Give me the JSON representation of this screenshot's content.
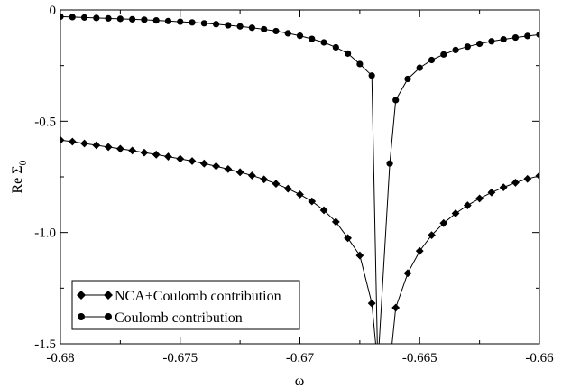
{
  "chart_data": {
    "type": "line",
    "title": "",
    "xlabel": "ω",
    "ylabel": {
      "main": "Re Σ",
      "subscript": "0"
    },
    "xlim": [
      -0.68,
      -0.66
    ],
    "ylim": [
      -1.5,
      0
    ],
    "xticks": [
      -0.68,
      -0.675,
      -0.67,
      -0.665,
      -0.66
    ],
    "xtick_labels": [
      "-0.68",
      "-0.675",
      "-0.67",
      "-0.665",
      "-0.66"
    ],
    "yticks": [
      0,
      -0.5,
      -1.0,
      -1.5
    ],
    "ytick_labels": [
      "0",
      "-0.5",
      "-1.0",
      "-1.5"
    ],
    "grid": false,
    "legend_position": "bottom-left",
    "series": [
      {
        "name": "NCA+Coulomb contribution",
        "marker": "diamond",
        "color": "#000000",
        "x": [
          -0.68,
          -0.6795,
          -0.679,
          -0.6785,
          -0.678,
          -0.6775,
          -0.677,
          -0.6765,
          -0.676,
          -0.6755,
          -0.675,
          -0.6745,
          -0.674,
          -0.6735,
          -0.673,
          -0.6725,
          -0.672,
          -0.6715,
          -0.671,
          -0.6705,
          -0.67,
          -0.6695,
          -0.669,
          -0.6685,
          -0.668,
          -0.6675,
          -0.667,
          -0.66675,
          -0.66625,
          -0.666,
          -0.6655,
          -0.665,
          -0.6645,
          -0.664,
          -0.6635,
          -0.663,
          -0.6625,
          -0.662,
          -0.6615,
          -0.661,
          -0.6605,
          -0.66
        ],
        "y": [
          -0.585,
          -0.592,
          -0.6,
          -0.608,
          -0.616,
          -0.624,
          -0.632,
          -0.641,
          -0.65,
          -0.659,
          -0.669,
          -0.679,
          -0.69,
          -0.702,
          -0.715,
          -0.729,
          -0.744,
          -0.761,
          -0.781,
          -0.803,
          -0.829,
          -0.86,
          -0.9,
          -0.952,
          -1.025,
          -1.103,
          -1.318,
          -1.6,
          -1.6,
          -1.338,
          -1.183,
          -1.083,
          -1.012,
          -0.958,
          -0.914,
          -0.878,
          -0.847,
          -0.82,
          -0.797,
          -0.776,
          -0.759,
          -0.745
        ]
      },
      {
        "name": "Coulomb contribution",
        "marker": "circle",
        "color": "#000000",
        "x": [
          -0.68,
          -0.6795,
          -0.679,
          -0.6785,
          -0.678,
          -0.6775,
          -0.677,
          -0.6765,
          -0.676,
          -0.6755,
          -0.675,
          -0.6745,
          -0.674,
          -0.6735,
          -0.673,
          -0.6725,
          -0.672,
          -0.6715,
          -0.671,
          -0.6705,
          -0.67,
          -0.6695,
          -0.669,
          -0.6685,
          -0.668,
          -0.6675,
          -0.667,
          -0.66675,
          -0.66625,
          -0.666,
          -0.6655,
          -0.665,
          -0.6645,
          -0.664,
          -0.6635,
          -0.663,
          -0.6625,
          -0.662,
          -0.6615,
          -0.661,
          -0.6605,
          -0.66
        ],
        "y": [
          -0.03,
          -0.032,
          -0.034,
          -0.036,
          -0.038,
          -0.04,
          -0.042,
          -0.044,
          -0.047,
          -0.05,
          -0.053,
          -0.056,
          -0.06,
          -0.064,
          -0.069,
          -0.074,
          -0.08,
          -0.087,
          -0.095,
          -0.105,
          -0.116,
          -0.13,
          -0.146,
          -0.168,
          -0.196,
          -0.243,
          -0.295,
          -1.6,
          -0.69,
          -0.405,
          -0.31,
          -0.26,
          -0.225,
          -0.2,
          -0.18,
          -0.165,
          -0.152,
          -0.141,
          -0.132,
          -0.124,
          -0.117,
          -0.111
        ]
      }
    ]
  }
}
